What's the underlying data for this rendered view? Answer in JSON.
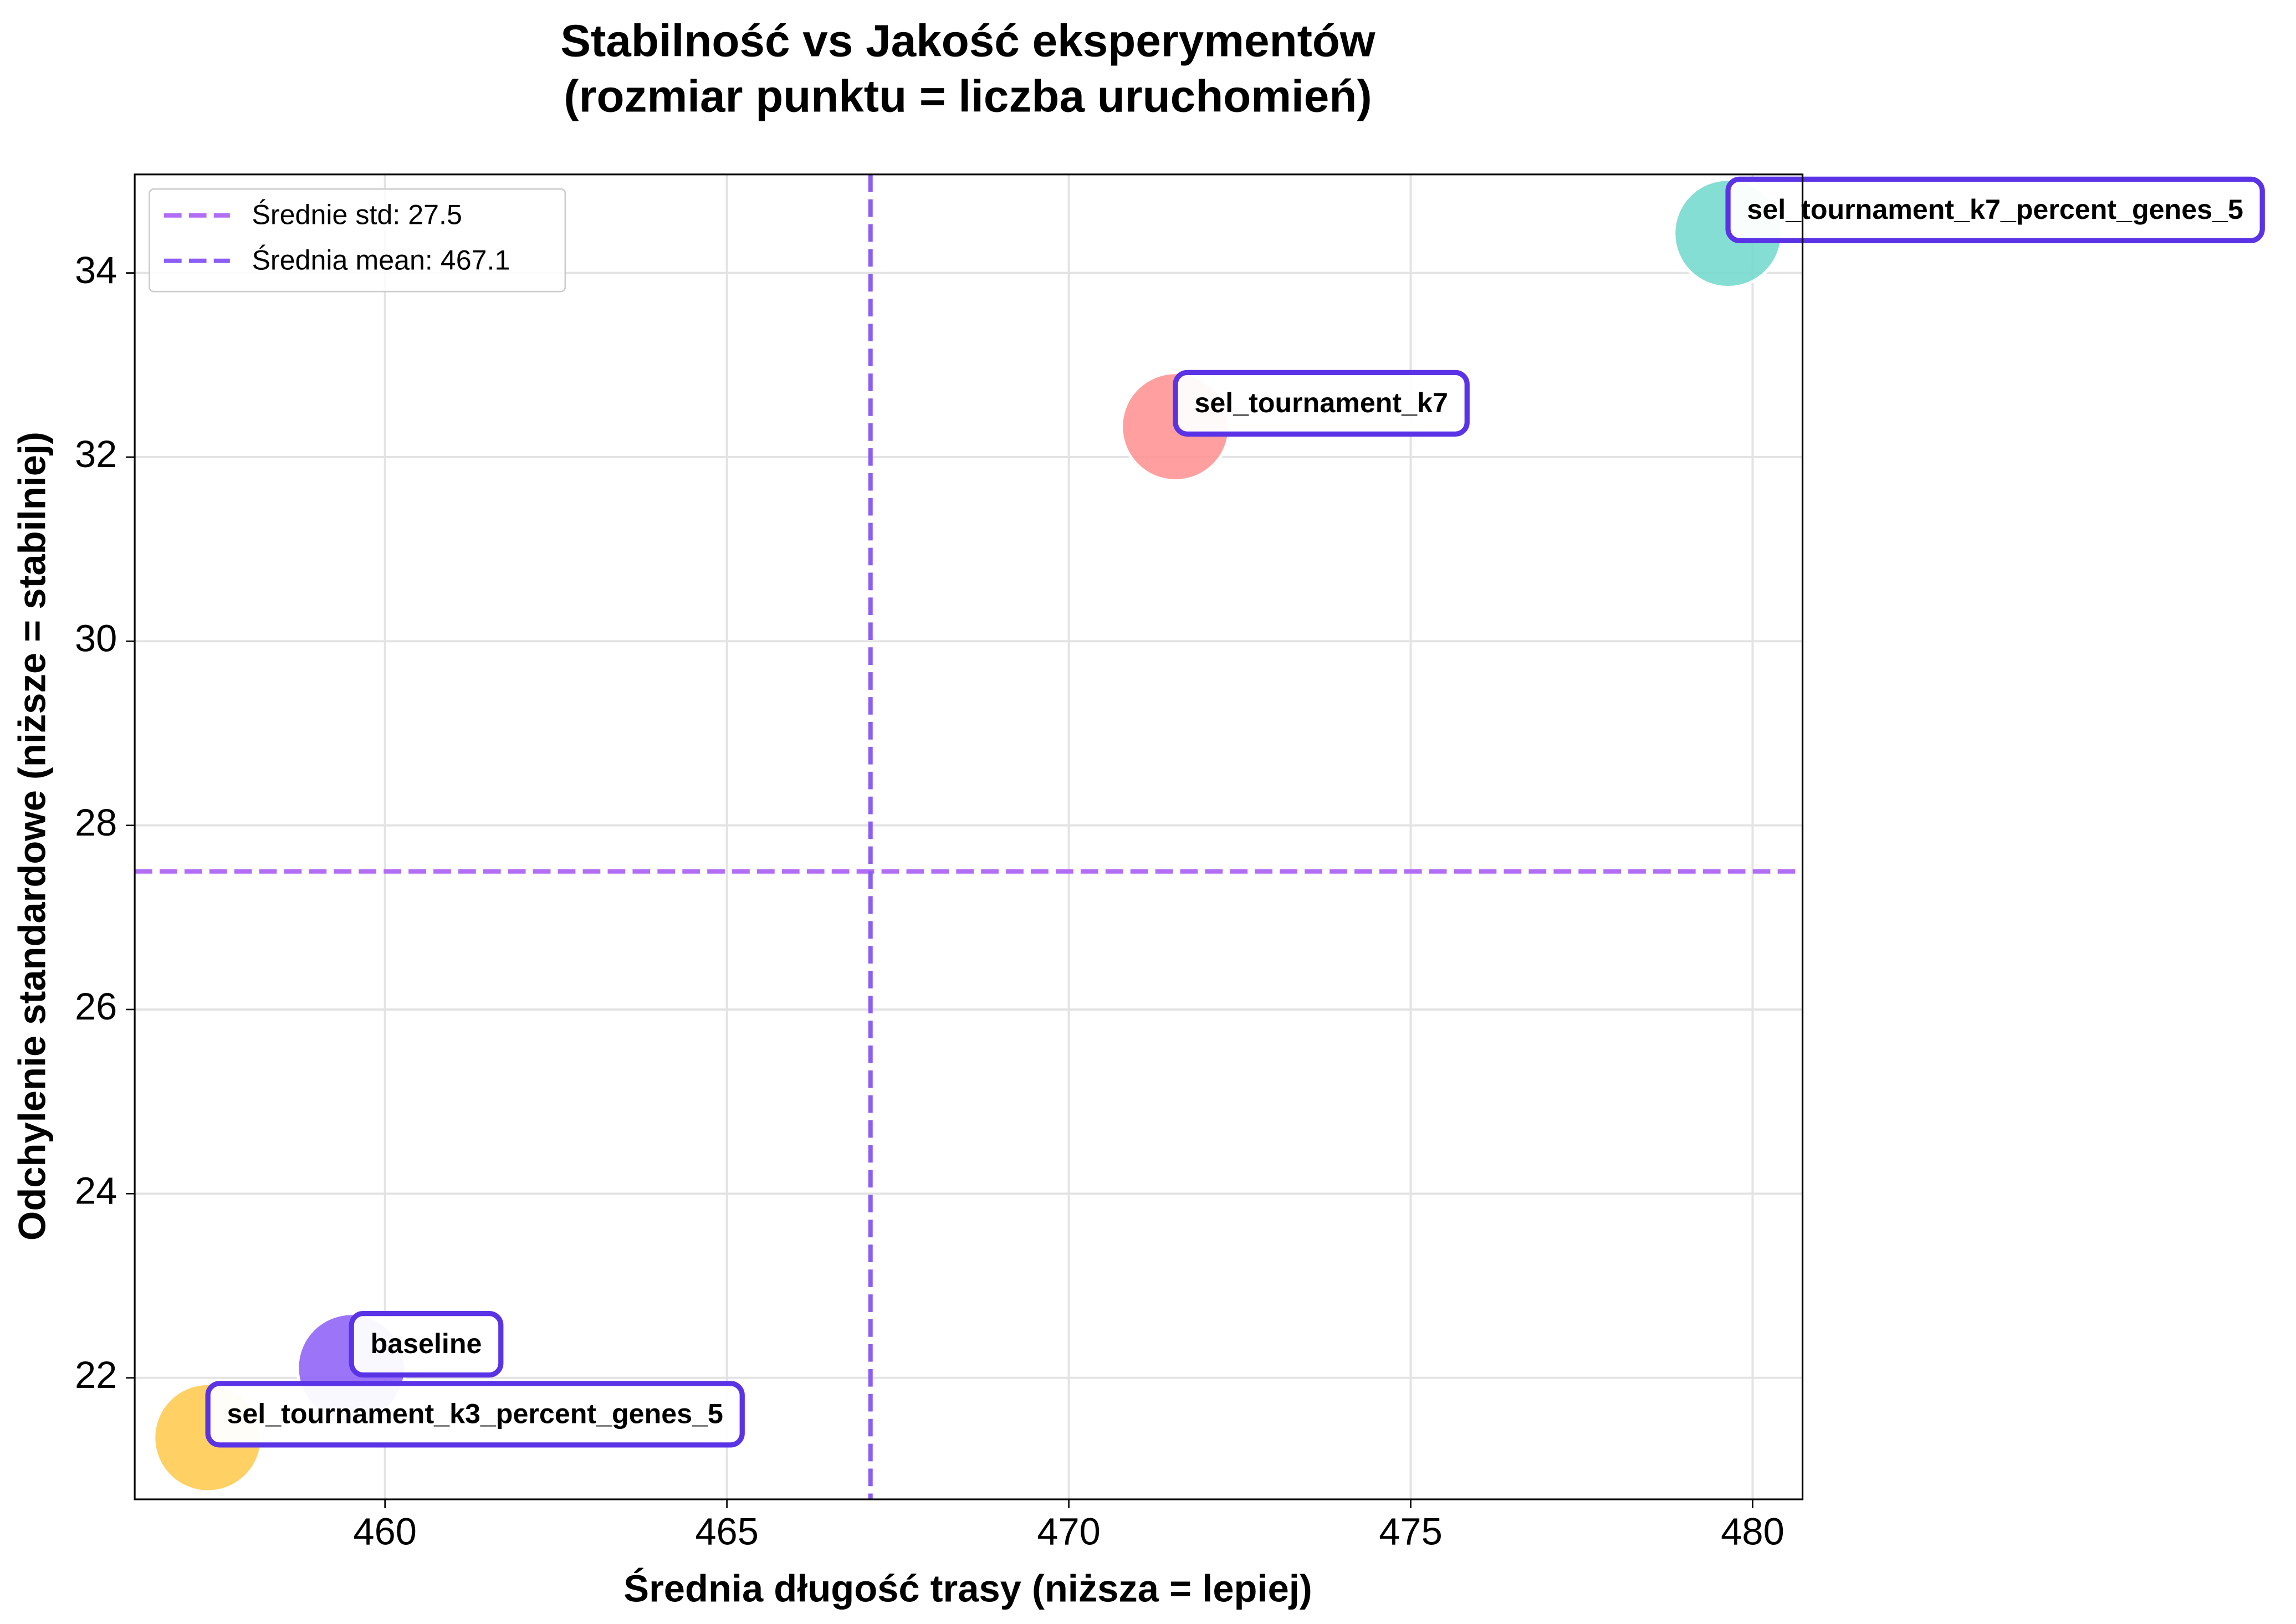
{
  "chart_data": {
    "type": "scatter",
    "title": [
      "Stabilność vs Jakość eksperymentów",
      "(rozmiar punktu = liczba uruchomień)"
    ],
    "x_label": "Średnia długość trasy (niższa = lepiej)",
    "y_label": "Odchylenie standardowe (niższe = stabilniej)",
    "categories": [
      "baseline",
      "sel_tournament_k3_percent_genes_5",
      "sel_tournament_k7",
      "sel_tournament_k7_percent_genes_5"
    ],
    "x": [
      459.51,
      457.41,
      471.56,
      479.64
    ],
    "values": [
      22.11,
      21.35,
      32.33,
      34.43
    ],
    "sizes": [
      5,
      5,
      5,
      5
    ],
    "colors": [
      "#8b5cf6",
      "#ffc94a",
      "#ff8e8e",
      "#6fd8cd"
    ],
    "xlim": [
      456.34,
      480.73
    ],
    "xticks": [
      460,
      465,
      470,
      475,
      480
    ],
    "ylim": [
      20.68,
      35.07
    ],
    "yticks": [
      22,
      24,
      26,
      28,
      30,
      32,
      34
    ],
    "grid": true,
    "legend": "upper left",
    "reference_lines": [
      {
        "name": "Średnie std: 27.5",
        "axis": "y",
        "value": 27.5,
        "color": "#b26df5"
      },
      {
        "name": "Średnia mean: 467.1",
        "axis": "x",
        "value": 467.1,
        "color": "#8b5cf6"
      }
    ]
  }
}
